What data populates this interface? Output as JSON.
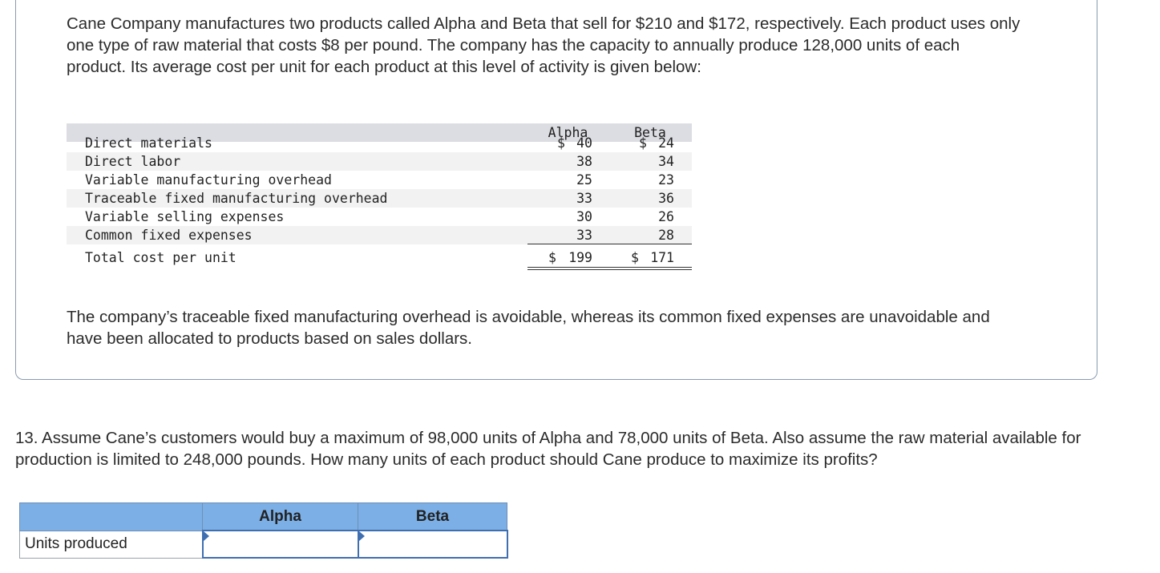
{
  "intro_paragraph": "Cane Company manufactures two products called Alpha and Beta that sell for $210 and $172, respectively. Each product uses only one type of raw material that costs $8 per pound. The company has the capacity to annually produce 128,000 units of each product. Its average cost per unit for each product at this level of activity is given below:",
  "cost_table": {
    "col_alpha": "Alpha",
    "col_beta": "Beta",
    "rows": [
      {
        "label": "Direct materials",
        "alpha": "40",
        "beta": "24",
        "currency": "$"
      },
      {
        "label": "Direct labor",
        "alpha": "38",
        "beta": "34"
      },
      {
        "label": "Variable manufacturing overhead",
        "alpha": "25",
        "beta": "23"
      },
      {
        "label": "Traceable fixed manufacturing overhead",
        "alpha": "33",
        "beta": "36"
      },
      {
        "label": "Variable selling expenses",
        "alpha": "30",
        "beta": "26"
      },
      {
        "label": "Common fixed expenses",
        "alpha": "33",
        "beta": "28"
      }
    ],
    "total": {
      "label": "Total cost per unit",
      "alpha": "199",
      "beta": "171",
      "currency": "$"
    }
  },
  "closing_paragraph": "The company’s traceable fixed manufacturing overhead is avoidable, whereas its common fixed expenses are unavoidable and have been allocated to products based on sales dollars.",
  "question": "13. Assume Cane’s customers would buy a maximum of 98,000 units of Alpha and 78,000 units of Beta. Also assume the raw material available for production is limited to 248,000 pounds. How many units of each product should Cane produce to maximize its profits?",
  "answer_table": {
    "col_alpha": "Alpha",
    "col_beta": "Beta",
    "row_label": "Units produced",
    "alpha_value": "",
    "beta_value": ""
  },
  "colors": {
    "header_blue": "#7bafe6",
    "input_border": "#3f6fb0",
    "table_header_gray": "#dcdde2"
  }
}
